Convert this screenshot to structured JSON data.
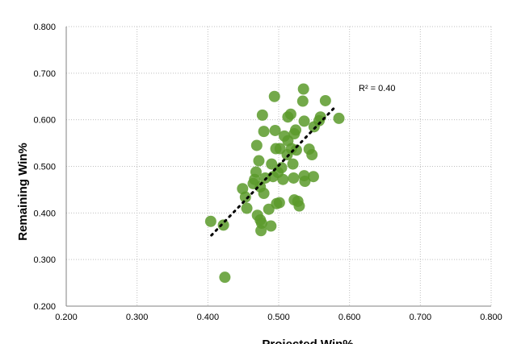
{
  "chart_data": {
    "type": "scatter",
    "title": "",
    "xlabel": "Projected Win%",
    "ylabel": "Remaining Win%",
    "xlim": [
      0.2,
      0.8
    ],
    "ylim": [
      0.2,
      0.8
    ],
    "xticks": [
      "0.200",
      "0.300",
      "0.400",
      "0.500",
      "0.600",
      "0.700",
      "0.800"
    ],
    "yticks": [
      "0.200",
      "0.300",
      "0.400",
      "0.500",
      "0.600",
      "0.700",
      "0.800"
    ],
    "grid": true,
    "legend": "none",
    "colors": {
      "points": "#5a9a2a",
      "trendline": "#000000",
      "grid": "#bfbfbf"
    },
    "annotation": "R² = 0.40",
    "trendline": {
      "x": [
        0.405,
        0.58
      ],
      "y": [
        0.352,
        0.628
      ],
      "style": "dotted"
    },
    "points": [
      {
        "x": 0.404,
        "y": 0.382
      },
      {
        "x": 0.422,
        "y": 0.374
      },
      {
        "x": 0.424,
        "y": 0.262
      },
      {
        "x": 0.449,
        "y": 0.452
      },
      {
        "x": 0.453,
        "y": 0.434
      },
      {
        "x": 0.455,
        "y": 0.41
      },
      {
        "x": 0.464,
        "y": 0.463
      },
      {
        "x": 0.466,
        "y": 0.472
      },
      {
        "x": 0.468,
        "y": 0.488
      },
      {
        "x": 0.469,
        "y": 0.545
      },
      {
        "x": 0.47,
        "y": 0.395
      },
      {
        "x": 0.472,
        "y": 0.512
      },
      {
        "x": 0.474,
        "y": 0.385
      },
      {
        "x": 0.474,
        "y": 0.456
      },
      {
        "x": 0.475,
        "y": 0.362
      },
      {
        "x": 0.476,
        "y": 0.378
      },
      {
        "x": 0.477,
        "y": 0.61
      },
      {
        "x": 0.479,
        "y": 0.575
      },
      {
        "x": 0.479,
        "y": 0.442
      },
      {
        "x": 0.481,
        "y": 0.475
      },
      {
        "x": 0.486,
        "y": 0.408
      },
      {
        "x": 0.489,
        "y": 0.372
      },
      {
        "x": 0.49,
        "y": 0.505
      },
      {
        "x": 0.492,
        "y": 0.478
      },
      {
        "x": 0.494,
        "y": 0.65
      },
      {
        "x": 0.495,
        "y": 0.577
      },
      {
        "x": 0.496,
        "y": 0.538
      },
      {
        "x": 0.497,
        "y": 0.42
      },
      {
        "x": 0.499,
        "y": 0.487
      },
      {
        "x": 0.501,
        "y": 0.422
      },
      {
        "x": 0.502,
        "y": 0.538
      },
      {
        "x": 0.504,
        "y": 0.497
      },
      {
        "x": 0.506,
        "y": 0.472
      },
      {
        "x": 0.508,
        "y": 0.565
      },
      {
        "x": 0.512,
        "y": 0.525
      },
      {
        "x": 0.513,
        "y": 0.555
      },
      {
        "x": 0.513,
        "y": 0.606
      },
      {
        "x": 0.517,
        "y": 0.612
      },
      {
        "x": 0.518,
        "y": 0.538
      },
      {
        "x": 0.52,
        "y": 0.505
      },
      {
        "x": 0.521,
        "y": 0.475
      },
      {
        "x": 0.522,
        "y": 0.428
      },
      {
        "x": 0.522,
        "y": 0.57
      },
      {
        "x": 0.524,
        "y": 0.578
      },
      {
        "x": 0.525,
        "y": 0.535
      },
      {
        "x": 0.527,
        "y": 0.425
      },
      {
        "x": 0.529,
        "y": 0.415
      },
      {
        "x": 0.534,
        "y": 0.64
      },
      {
        "x": 0.535,
        "y": 0.666
      },
      {
        "x": 0.536,
        "y": 0.597
      },
      {
        "x": 0.536,
        "y": 0.48
      },
      {
        "x": 0.537,
        "y": 0.468
      },
      {
        "x": 0.543,
        "y": 0.537
      },
      {
        "x": 0.547,
        "y": 0.525
      },
      {
        "x": 0.549,
        "y": 0.478
      },
      {
        "x": 0.55,
        "y": 0.585
      },
      {
        "x": 0.557,
        "y": 0.598
      },
      {
        "x": 0.559,
        "y": 0.606
      },
      {
        "x": 0.566,
        "y": 0.641
      },
      {
        "x": 0.585,
        "y": 0.603
      }
    ]
  }
}
